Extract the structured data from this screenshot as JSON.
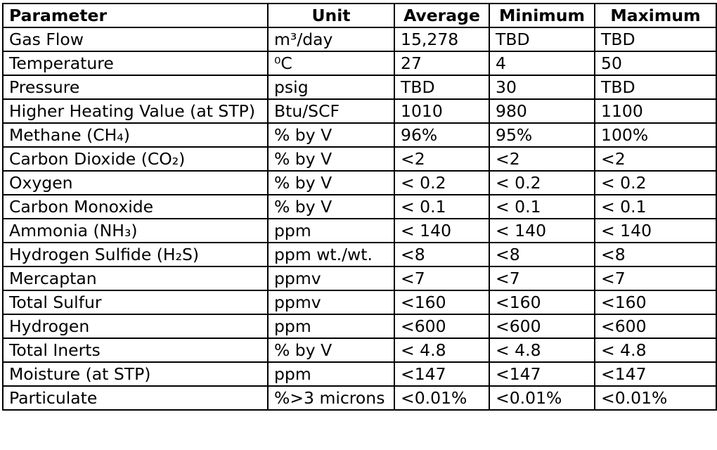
{
  "table": {
    "headers": [
      "Parameter",
      "Unit",
      "Average",
      "Minimum",
      "Maximum"
    ],
    "rows": [
      [
        "Gas Flow",
        "m³/day",
        "15,278",
        "TBD",
        "TBD"
      ],
      [
        "Temperature",
        "⁰C",
        "27",
        "4",
        "50"
      ],
      [
        "Pressure",
        "psig",
        "TBD",
        "30",
        "TBD"
      ],
      [
        "Higher Heating Value (at STP)",
        "Btu/SCF",
        "1010",
        "980",
        "1100"
      ],
      [
        "Methane (CH₄)",
        "% by V",
        "96%",
        "95%",
        "100%"
      ],
      [
        "Carbon Dioxide (CO₂)",
        "% by V",
        "<2",
        "<2",
        "<2"
      ],
      [
        "Oxygen",
        "% by V",
        "< 0.2",
        "< 0.2",
        "< 0.2"
      ],
      [
        "Carbon Monoxide",
        "% by V",
        "< 0.1",
        "< 0.1",
        "< 0.1"
      ],
      [
        "Ammonia (NH₃)",
        "ppm",
        "< 140",
        "< 140",
        "< 140"
      ],
      [
        "Hydrogen Sulfide (H₂S)",
        "ppm wt./wt.",
        "<8",
        "<8",
        "<8"
      ],
      [
        "Mercaptan",
        "ppmv",
        "<7",
        "<7",
        "<7"
      ],
      [
        "Total Sulfur",
        "ppmv",
        "<160",
        "<160",
        "<160"
      ],
      [
        "Hydrogen",
        "ppm",
        "<600",
        "<600",
        "<600"
      ],
      [
        "Total Inerts",
        "% by V",
        "< 4.8",
        "< 4.8",
        "< 4.8"
      ],
      [
        "Moisture (at STP)",
        "ppm",
        "<147",
        "<147",
        "<147"
      ],
      [
        "Particulate",
        "%>3 microns",
        "<0.01%",
        "<0.01%",
        "<0.01%"
      ]
    ]
  }
}
